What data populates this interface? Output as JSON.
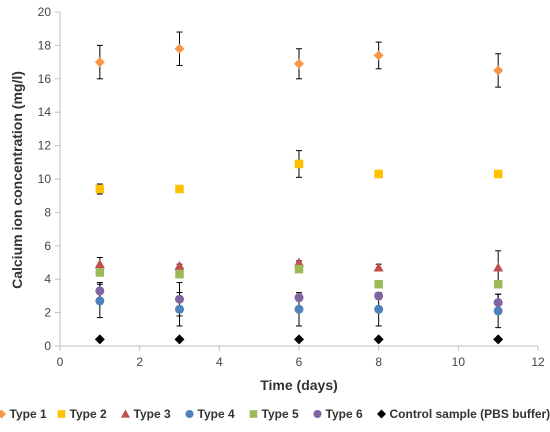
{
  "chart_data": {
    "type": "scatter",
    "xlabel": "Time (days)",
    "ylabel": "Calcium ion concentration (mg/l)",
    "xlim": [
      0,
      12
    ],
    "ylim": [
      0,
      20
    ],
    "xticks": [
      0,
      2,
      4,
      6,
      8,
      10,
      12
    ],
    "yticks": [
      0,
      2,
      4,
      6,
      8,
      10,
      12,
      14,
      16,
      18,
      20
    ],
    "grid": false,
    "legend_position": "bottom",
    "x": [
      1,
      3,
      6,
      8,
      11
    ],
    "series": [
      {
        "name": "Type 1",
        "marker": "diamond",
        "color": "#F79646",
        "values": [
          17.0,
          17.8,
          16.9,
          17.4,
          16.5
        ],
        "errors": [
          1.0,
          1.0,
          0.9,
          0.8,
          1.0
        ]
      },
      {
        "name": "Type 2",
        "marker": "square",
        "color": "#FFC000",
        "values": [
          9.4,
          9.4,
          10.9,
          10.3,
          10.3
        ],
        "errors": [
          0.3,
          0.2,
          0.8,
          0.1,
          0.1
        ]
      },
      {
        "name": "Type 3",
        "marker": "triangle",
        "color": "#C0504D",
        "values": [
          4.9,
          4.8,
          5.0,
          4.7,
          4.7
        ],
        "errors": [
          0.4,
          0.1,
          0.1,
          0.2,
          1.0
        ]
      },
      {
        "name": "Type 4",
        "marker": "circle",
        "color": "#4F81BD",
        "values": [
          2.7,
          2.2,
          2.2,
          2.2,
          2.1
        ],
        "errors": [
          1.0,
          1.0,
          1.0,
          1.0,
          1.0
        ]
      },
      {
        "name": "Type 5",
        "marker": "square",
        "color": "#9BBB59",
        "values": [
          4.4,
          4.3,
          4.6,
          3.7,
          3.7
        ],
        "errors": [
          0.2,
          0.1,
          0.1,
          0.1,
          0.1
        ]
      },
      {
        "name": "Type 6",
        "marker": "circle",
        "color": "#8064A2",
        "values": [
          3.3,
          2.8,
          2.9,
          3.0,
          2.6
        ],
        "errors": [
          0.5,
          1.0,
          0.2,
          0.2,
          0.5
        ]
      },
      {
        "name": "Control sample (PBS buffer)",
        "marker": "diamond",
        "color": "#000000",
        "values": [
          0.4,
          0.4,
          0.4,
          0.4,
          0.4
        ],
        "errors": [
          0,
          0,
          0,
          0,
          0
        ]
      }
    ]
  }
}
